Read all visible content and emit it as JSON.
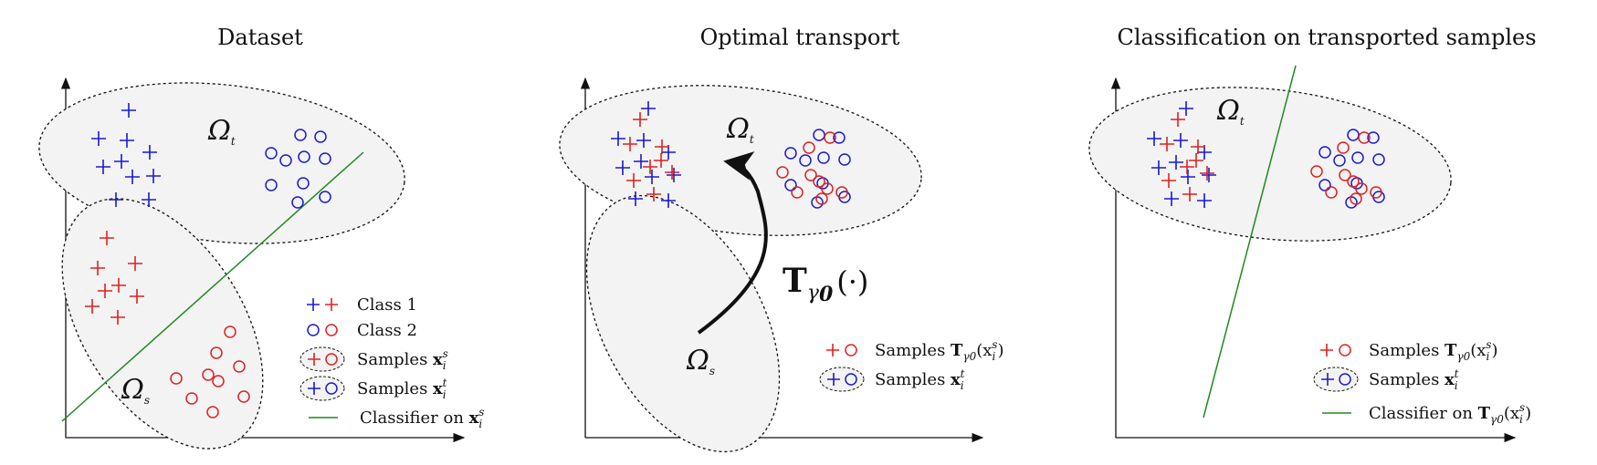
{
  "panels": {
    "dataset": {
      "title": "Dataset",
      "omega_t": "Ω",
      "omega_t_sub": "t",
      "omega_s": "Ω",
      "omega_s_sub": "s",
      "legend": {
        "class1": "Class 1",
        "class2": "Class 2",
        "samples_s_text": "Samples ",
        "samples_s_var": "x",
        "samples_s_sub": "i",
        "samples_s_sup": "s",
        "samples_t_text": "Samples ",
        "samples_t_var": "x",
        "samples_t_sub": "i",
        "samples_t_sup": "t",
        "classifier_text": "Classifier on ",
        "classifier_var": "x",
        "classifier_sub": "i",
        "classifier_sup": "s"
      }
    },
    "transport": {
      "title": "Optimal transport",
      "omega_t": "Ω",
      "omega_t_sub": "t",
      "omega_s": "Ω",
      "omega_s_sub": "s",
      "map_T": "T",
      "map_sub": "γ",
      "map_sub2": "0",
      "map_arg": "(·)",
      "legend": {
        "samples_T_text": "Samples ",
        "samples_T_var": "T",
        "samples_T_sub": "γ0",
        "samples_T_arg": "(x",
        "samples_T_arg_sub": "i",
        "samples_T_arg_sup": "s",
        "samples_T_close": ")",
        "samples_t_text": "Samples ",
        "samples_t_var": "x",
        "samples_t_sub": "i",
        "samples_t_sup": "t"
      }
    },
    "classification": {
      "title": "Classification on transported samples",
      "omega_t": "Ω",
      "omega_t_sub": "t",
      "legend": {
        "samples_T_text": "Samples ",
        "samples_T_var": "T",
        "samples_T_sub": "γ0",
        "samples_T_arg": "(x",
        "samples_T_arg_sub": "i",
        "samples_T_arg_sup": "s",
        "samples_T_close": ")",
        "samples_t_text": "Samples ",
        "samples_t_var": "x",
        "samples_t_sub": "i",
        "samples_t_sup": "t",
        "classifier_text": "Classifier on ",
        "classifier_var": "T",
        "classifier_sub": "γ0",
        "classifier_arg": "(x",
        "classifier_arg_sub": "i",
        "classifier_arg_sup": "s",
        "classifier_close": ")"
      }
    }
  },
  "colors": {
    "class1": "#1a1ad6",
    "class2_source": "#e02020",
    "classifier": "#1f8a1f",
    "ellipse_fill": "#f3f3f3",
    "axis": "#111111"
  }
}
